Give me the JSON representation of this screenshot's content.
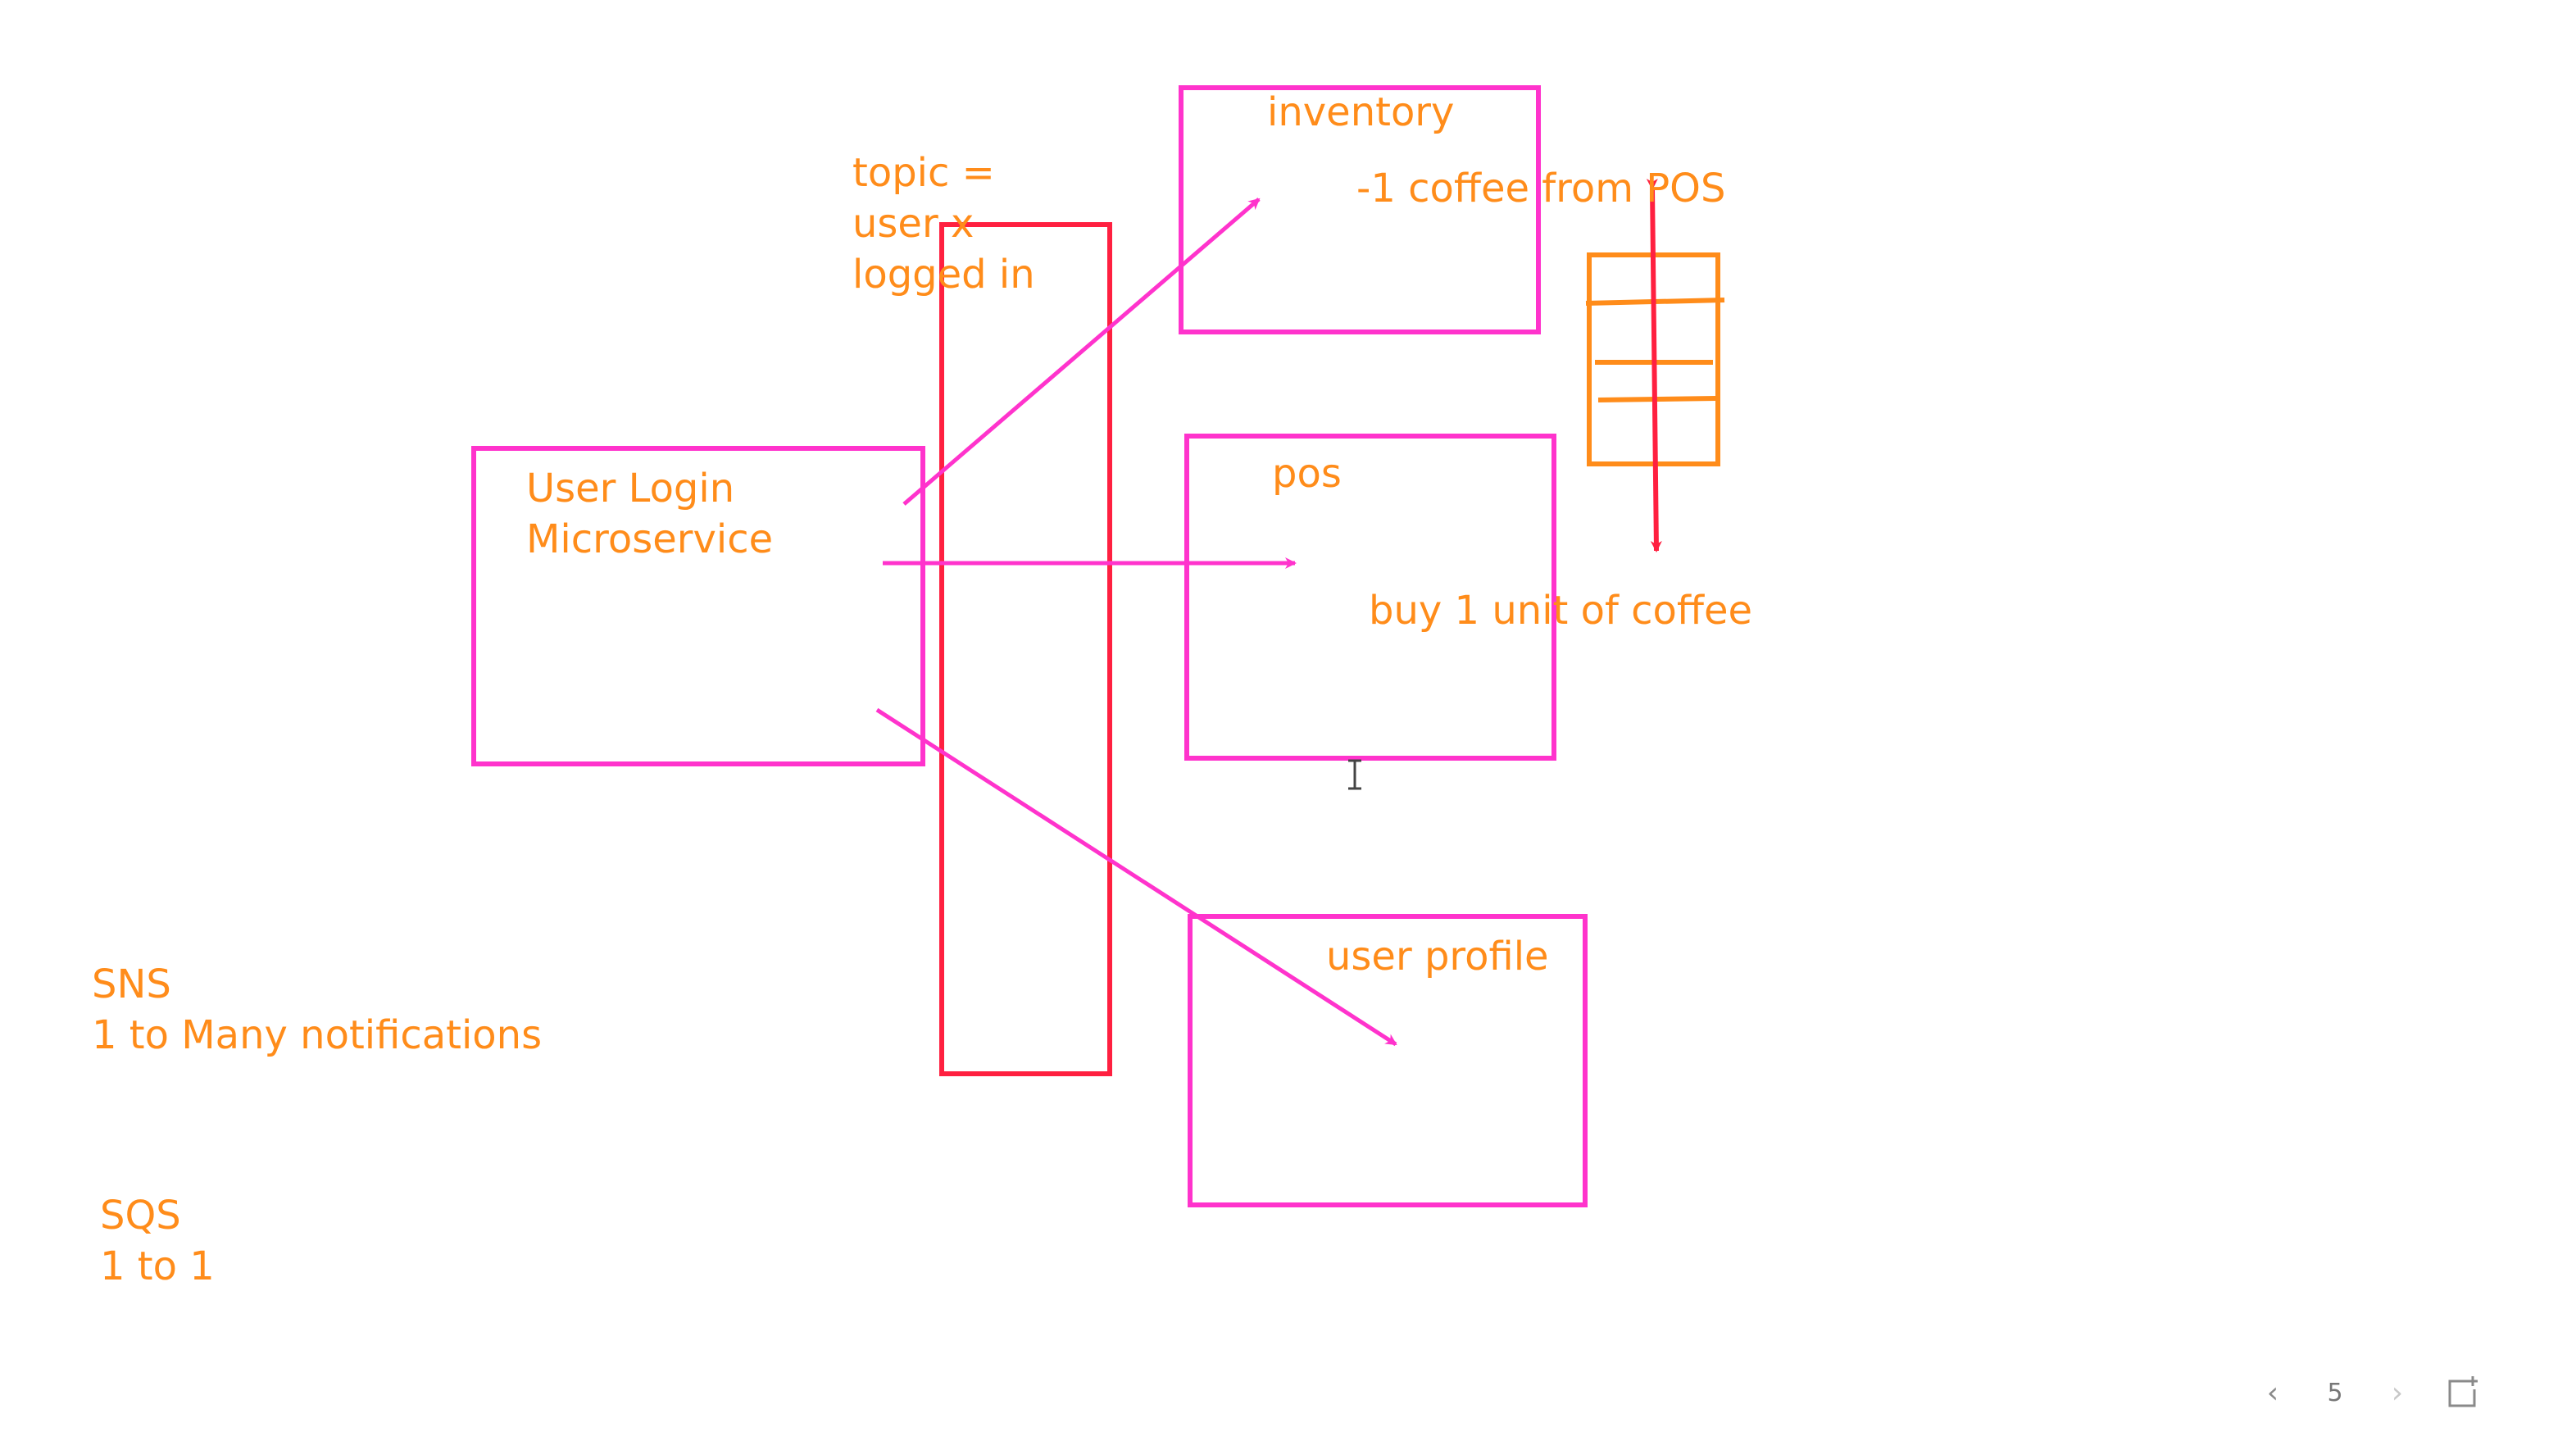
{
  "colors": {
    "service_box": "#ff33cc",
    "topic_box": "#ff2040",
    "queue": "#ff8c1a",
    "text": "#ff8c1a",
    "arrow_magenta": "#ff33cc",
    "arrow_red": "#ff2040"
  },
  "labels": {
    "topic": "topic =\nuser x\nlogged in",
    "user_login": "User Login\nMicroservice",
    "inventory": "inventory",
    "inventory_note": "-1 coffee from POS",
    "pos": "pos",
    "pos_note": "buy 1 unit of coffee",
    "user_profile": "user profile",
    "sns": "SNS\n1 to Many notifications",
    "sqs": "SQS\n1 to 1"
  },
  "pager": {
    "prev_icon": "chevron-left-icon",
    "page": "5",
    "next_icon": "chevron-right-icon",
    "add_icon": "add-page-icon"
  },
  "cursor_icon": "text-cursor-icon"
}
